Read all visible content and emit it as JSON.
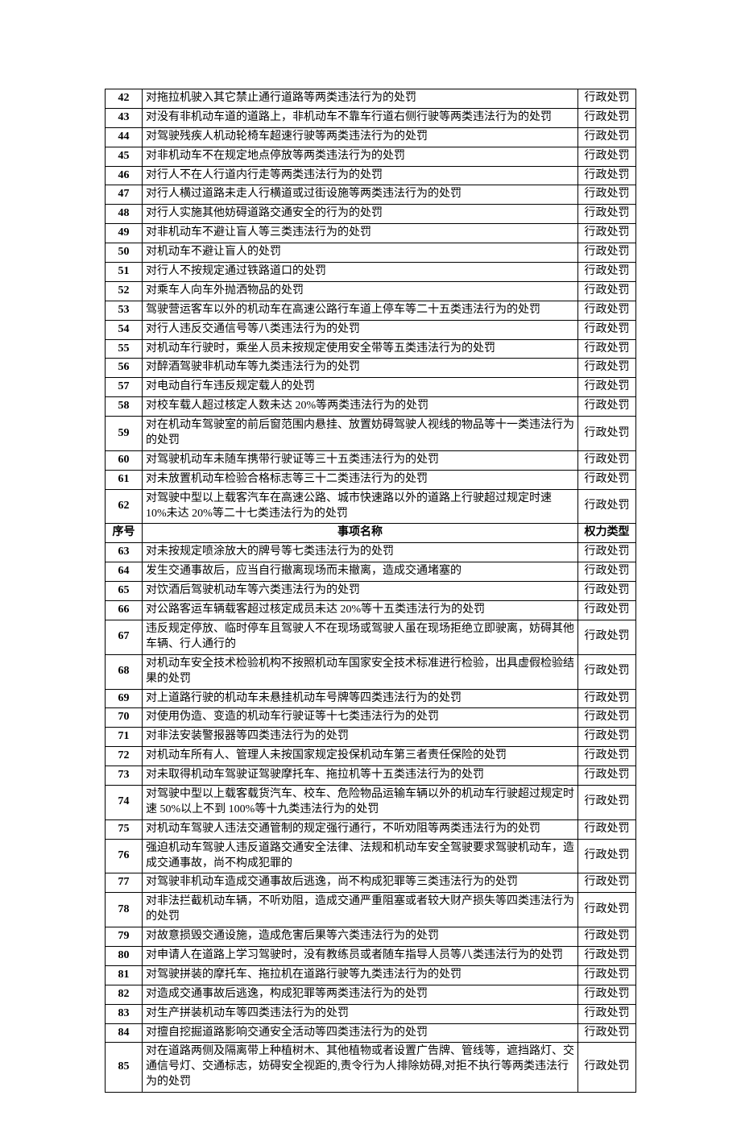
{
  "table": {
    "header": {
      "num": "序号",
      "desc": "事项名称",
      "type": "权力类型"
    },
    "rows": [
      {
        "num": "42",
        "desc": "对拖拉机驶入其它禁止通行道路等两类违法行为的处罚",
        "type": "行政处罚"
      },
      {
        "num": "43",
        "desc": "对没有非机动车道的道路上，非机动车不靠车行道右侧行驶等两类违法行为的处罚",
        "type": "行政处罚"
      },
      {
        "num": "44",
        "desc": "对驾驶残疾人机动轮椅车超速行驶等两类违法行为的处罚",
        "type": "行政处罚"
      },
      {
        "num": "45",
        "desc": "对非机动车不在规定地点停放等两类违法行为的处罚",
        "type": "行政处罚"
      },
      {
        "num": "46",
        "desc": "对行人不在人行道内行走等两类违法行为的处罚",
        "type": "行政处罚"
      },
      {
        "num": "47",
        "desc": "对行人横过道路未走人行横道或过街设施等两类违法行为的处罚",
        "type": "行政处罚"
      },
      {
        "num": "48",
        "desc": "对行人实施其他妨碍道路交通安全的行为的处罚",
        "type": "行政处罚"
      },
      {
        "num": "49",
        "desc": "对非机动车不避让盲人等三类违法行为的处罚",
        "type": "行政处罚"
      },
      {
        "num": "50",
        "desc": "对机动车不避让盲人的处罚",
        "type": "行政处罚"
      },
      {
        "num": "51",
        "desc": "对行人不按规定通过铁路道口的处罚",
        "type": "行政处罚"
      },
      {
        "num": "52",
        "desc": "对乘车人向车外抛洒物品的处罚",
        "type": "行政处罚"
      },
      {
        "num": "53",
        "desc": "驾驶营运客车以外的机动车在高速公路行车道上停车等二十五类违法行为的处罚",
        "type": "行政处罚"
      },
      {
        "num": "54",
        "desc": "对行人违反交通信号等八类违法行为的处罚",
        "type": "行政处罚"
      },
      {
        "num": "55",
        "desc": "对机动车行驶时，乘坐人员未按规定使用安全带等五类违法行为的处罚",
        "type": "行政处罚"
      },
      {
        "num": "56",
        "desc": "对醉酒驾驶非机动车等九类违法行为的处罚",
        "type": "行政处罚"
      },
      {
        "num": "57",
        "desc": "对电动自行车违反规定载人的处罚",
        "type": "行政处罚"
      },
      {
        "num": "58",
        "desc": "对校车载人超过核定人数未达 20%等两类违法行为的处罚",
        "type": "行政处罚"
      },
      {
        "num": "59",
        "desc": "对在机动车驾驶室的前后窗范围内悬挂、放置妨碍驾驶人视线的物品等十一类违法行为的处罚",
        "type": "行政处罚"
      },
      {
        "num": "60",
        "desc": "对驾驶机动车未随车携带行驶证等三十五类违法行为的处罚",
        "type": "行政处罚"
      },
      {
        "num": "61",
        "desc": "对未放置机动车检验合格标志等三十二类违法行为的处罚",
        "type": "行政处罚"
      },
      {
        "num": "62",
        "desc": "对驾驶中型以上载客汽车在高速公路、城市快速路以外的道路上行驶超过规定时速 10%未达 20%等二十七类违法行为的处罚",
        "type": "行政处罚"
      },
      {
        "header": true
      },
      {
        "num": "63",
        "desc": "对未按规定喷涂放大的牌号等七类违法行为的处罚",
        "type": "行政处罚"
      },
      {
        "num": "64",
        "desc": "发生交通事故后，应当自行撤离现场而未撤离，造成交通堵塞的",
        "type": "行政处罚"
      },
      {
        "num": "65",
        "desc": "对饮酒后驾驶机动车等六类违法行为的处罚",
        "type": "行政处罚"
      },
      {
        "num": "66",
        "desc": "对公路客运车辆载客超过核定成员未达 20%等十五类违法行为的处罚",
        "type": "行政处罚"
      },
      {
        "num": "67",
        "desc": "违反规定停放、临时停车且驾驶人不在现场或驾驶人虽在现场拒绝立即驶离，妨碍其他车辆、行人通行的",
        "type": "行政处罚"
      },
      {
        "num": "68",
        "desc": "对机动车安全技术检验机构不按照机动车国家安全技术标准进行检验，出具虚假检验结果的处罚",
        "type": "行政处罚"
      },
      {
        "num": "69",
        "desc": "对上道路行驶的机动车未悬挂机动车号牌等四类违法行为的处罚",
        "type": "行政处罚"
      },
      {
        "num": "70",
        "desc": "对使用伪造、变造的机动车行驶证等十七类违法行为的处罚",
        "type": "行政处罚"
      },
      {
        "num": "71",
        "desc": "对非法安装警报器等四类违法行为的处罚",
        "type": "行政处罚"
      },
      {
        "num": "72",
        "desc": "对机动车所有人、管理人未按国家规定投保机动车第三者责任保险的处罚",
        "type": "行政处罚"
      },
      {
        "num": "73",
        "desc": "对未取得机动车驾驶证驾驶摩托车、拖拉机等十五类违法行为的处罚",
        "type": "行政处罚"
      },
      {
        "num": "74",
        "desc": "对驾驶中型以上载客载货汽车、校车、危险物品运输车辆以外的机动车行驶超过规定时速 50%以上不到 100%等十九类违法行为的处罚",
        "type": "行政处罚"
      },
      {
        "num": "75",
        "desc": "对机动车驾驶人违法交通管制的规定强行通行，不听劝阻等两类违法行为的处罚",
        "type": "行政处罚"
      },
      {
        "num": "76",
        "desc": "强迫机动车驾驶人违反道路交通安全法律、法规和机动车安全驾驶要求驾驶机动车，造成交通事故，尚不构成犯罪的",
        "type": "行政处罚"
      },
      {
        "num": "77",
        "desc": "对驾驶非机动车造成交通事故后逃逸，尚不构成犯罪等三类违法行为的处罚",
        "type": "行政处罚"
      },
      {
        "num": "78",
        "desc": "对非法拦截机动车辆，不听劝阻，造成交通严重阻塞或者较大财产损失等四类违法行为的处罚",
        "type": "行政处罚"
      },
      {
        "num": "79",
        "desc": "对故意损毁交通设施，造成危害后果等六类违法行为的处罚",
        "type": "行政处罚"
      },
      {
        "num": "80",
        "desc": "对申请人在道路上学习驾驶时，没有教练员或者随车指导人员等八类违法行为的处罚",
        "type": "行政处罚"
      },
      {
        "num": "81",
        "desc": "对驾驶拼装的摩托车、拖拉机在道路行驶等九类违法行为的处罚",
        "type": "行政处罚"
      },
      {
        "num": "82",
        "desc": "对造成交通事故后逃逸，构成犯罪等两类违法行为的处罚",
        "type": "行政处罚"
      },
      {
        "num": "83",
        "desc": "对生产拼装机动车等四类违法行为的处罚",
        "type": "行政处罚"
      },
      {
        "num": "84",
        "desc": "对擅自挖掘道路影响交通安全活动等四类违法行为的处罚",
        "type": "行政处罚"
      },
      {
        "num": "85",
        "desc": "对在道路两侧及隔离带上种植树木、其他植物或者设置广告牌、管线等，遮挡路灯、交通信号灯、交通标志，妨碍安全视距的,责令行为人排除妨碍,对拒不执行等两类违法行为的处罚",
        "type": "行政处罚"
      }
    ]
  }
}
